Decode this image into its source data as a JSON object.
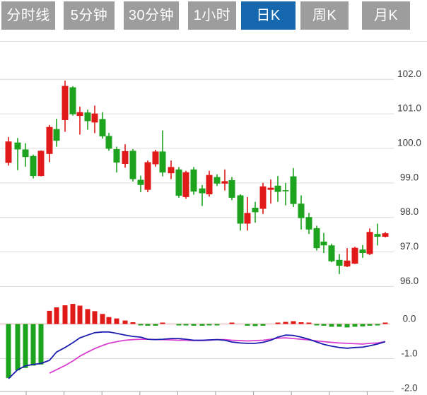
{
  "tabs": [
    {
      "id": "time-line",
      "label": "分时线",
      "active": false
    },
    {
      "id": "5min",
      "label": "5分钟",
      "active": false
    },
    {
      "id": "30min",
      "label": "30分钟",
      "active": false
    },
    {
      "id": "1hour",
      "label": "1小时",
      "active": false
    },
    {
      "id": "daily",
      "label": "日K",
      "active": true
    },
    {
      "id": "weekly",
      "label": "周K",
      "active": false
    },
    {
      "id": "monthly",
      "label": "月K",
      "active": false
    }
  ],
  "colors": {
    "tab_active_bg": "#1668ae",
    "tab_inactive_bg": "#9d9d9d",
    "tab_text": "#ffffff",
    "up": "#e01919",
    "down": "#1ea31e",
    "dif_line": "#1d1db0",
    "dea_line": "#d83fd0",
    "grid": "#dcdcdc",
    "macd_zero_line": "#eda9a9",
    "axis_text": "#3d3d3d",
    "axis_line": "#c0c0c0"
  },
  "chart_data": {
    "type": "candlestick",
    "panels": [
      "price",
      "macd"
    ],
    "price_axis": {
      "tick_labels": [
        "102.0",
        "101.0",
        "100.0",
        "99.0",
        "98.0",
        "97.0",
        "96.0"
      ],
      "tick_values": [
        102,
        101,
        100,
        99,
        98,
        97,
        96
      ],
      "range": [
        95.8,
        102.6
      ],
      "grid": true,
      "position": "right"
    },
    "macd_axis": {
      "tick_labels": [
        "0.0",
        "-1.0",
        "-2.0"
      ],
      "tick_values": [
        0,
        -1,
        -2
      ],
      "range": [
        -2.1,
        0.7
      ],
      "position": "right"
    },
    "up_convention": "red body when close >= open, green when close < open",
    "candles_format": [
      "center_x",
      "open",
      "high",
      "low",
      "close"
    ],
    "candles": [
      [
        12,
        99.58,
        100.33,
        99.5,
        100.2
      ],
      [
        25,
        100.17,
        100.3,
        99.37,
        99.97
      ],
      [
        36,
        99.97,
        100.15,
        99.47,
        99.75
      ],
      [
        47,
        99.78,
        99.82,
        99.13,
        99.2
      ],
      [
        58,
        99.2,
        99.94,
        99.19,
        99.93
      ],
      [
        70,
        99.84,
        100.68,
        99.6,
        100.62
      ],
      [
        80,
        100.56,
        100.86,
        100.05,
        100.22
      ],
      [
        92,
        100.82,
        101.96,
        100.48,
        101.81
      ],
      [
        103,
        101.77,
        101.8,
        100.95,
        100.99
      ],
      [
        113,
        100.94,
        101.21,
        100.4,
        101.05
      ],
      [
        124,
        101.04,
        101.12,
        100.54,
        100.79
      ],
      [
        134,
        100.75,
        101.24,
        100.44,
        101.01
      ],
      [
        145,
        100.85,
        101.05,
        100.28,
        100.35
      ],
      [
        154,
        100.36,
        100.45,
        99.93,
        99.99
      ],
      [
        165,
        99.98,
        100.05,
        99.3,
        99.59
      ],
      [
        177,
        99.55,
        100.12,
        99.44,
        99.92
      ],
      [
        188,
        99.93,
        99.98,
        99.04,
        99.11
      ],
      [
        199,
        99.09,
        99.21,
        98.73,
        98.94
      ],
      [
        209,
        98.8,
        99.65,
        98.73,
        99.6
      ],
      [
        220,
        99.54,
        99.96,
        99.47,
        99.91
      ],
      [
        230,
        99.91,
        100.52,
        99.19,
        99.3
      ],
      [
        242,
        99.28,
        99.65,
        99.11,
        99.46
      ],
      [
        253,
        99.39,
        99.46,
        98.57,
        98.63
      ],
      [
        263,
        98.59,
        99.35,
        98.54,
        99.31
      ],
      [
        274,
        99.39,
        99.46,
        98.66,
        98.75
      ],
      [
        286,
        98.84,
        98.94,
        98.33,
        98.7
      ],
      [
        296,
        98.67,
        99.35,
        98.6,
        99.23
      ],
      [
        307,
        99.17,
        99.25,
        98.91,
        98.98
      ],
      [
        318,
        98.98,
        99.39,
        98.78,
        99.05
      ],
      [
        328,
        99.08,
        99.17,
        98.5,
        98.57
      ],
      [
        340,
        98.64,
        98.67,
        97.62,
        97.82
      ],
      [
        350,
        97.82,
        98.59,
        97.62,
        98.13
      ],
      [
        361,
        98.28,
        98.45,
        97.85,
        98.15
      ],
      [
        372,
        98.25,
        99.0,
        98.1,
        98.9
      ],
      [
        383,
        98.8,
        99.1,
        98.4,
        98.86
      ],
      [
        393,
        98.92,
        99.2,
        98.45,
        98.74
      ],
      [
        404,
        98.79,
        99.0,
        98.35,
        98.77
      ],
      [
        415,
        99.19,
        99.43,
        98.3,
        98.39
      ],
      [
        426,
        98.4,
        98.64,
        97.65,
        97.98
      ],
      [
        437,
        98.01,
        98.13,
        97.52,
        97.65
      ],
      [
        448,
        97.69,
        97.76,
        97.04,
        97.11
      ],
      [
        458,
        97.3,
        97.55,
        96.97,
        97.19
      ],
      [
        469,
        97.19,
        97.24,
        96.7,
        96.73
      ],
      [
        480,
        96.77,
        96.94,
        96.36,
        96.6
      ],
      [
        491,
        96.58,
        97.11,
        96.56,
        96.75
      ],
      [
        502,
        96.66,
        97.15,
        96.65,
        97.12
      ],
      [
        513,
        97.07,
        97.2,
        96.83,
        96.97
      ],
      [
        523,
        96.94,
        97.68,
        96.91,
        97.58
      ],
      [
        534,
        97.52,
        97.82,
        97.19,
        97.44
      ],
      [
        545,
        97.44,
        97.58,
        97.42,
        97.54
      ]
    ],
    "macd": {
      "histogram": [
        -1.56,
        -1.34,
        -1.27,
        -1.2,
        -1.17,
        0.38,
        0.48,
        0.54,
        0.58,
        0.53,
        0.43,
        0.37,
        0.29,
        0.2,
        0.16,
        0.1,
        0.05,
        -0.04,
        -0.05,
        -0.05,
        0.02,
        0,
        -0.02,
        -0.04,
        -0.05,
        -0.05,
        -0.04,
        -0.04,
        0,
        0.02,
        0,
        -0.05,
        -0.06,
        -0.05,
        0,
        0.04,
        0.06,
        0.08,
        0.05,
        0.02,
        -0.03,
        -0.05,
        -0.08,
        -0.08,
        -0.1,
        -0.08,
        -0.07,
        -0.05,
        -0.04,
        0.03
      ],
      "dif": [
        -1.58,
        -1.32,
        -1.21,
        -1.17,
        -1.14,
        -1.05,
        -0.81,
        -0.68,
        -0.54,
        -0.4,
        -0.32,
        -0.25,
        -0.23,
        -0.23,
        -0.27,
        -0.32,
        -0.36,
        -0.38,
        -0.44,
        -0.45,
        -0.44,
        -0.42,
        -0.42,
        -0.44,
        -0.47,
        -0.47,
        -0.46,
        -0.45,
        -0.47,
        -0.52,
        -0.55,
        -0.56,
        -0.56,
        -0.53,
        -0.47,
        -0.38,
        -0.32,
        -0.33,
        -0.38,
        -0.44,
        -0.52,
        -0.59,
        -0.64,
        -0.68,
        -0.7,
        -0.68,
        -0.67,
        -0.63,
        -0.58,
        -0.51
      ],
      "dea": [
        null,
        null,
        null,
        null,
        null,
        -1.42,
        -1.32,
        -1.2,
        -1.07,
        -0.93,
        -0.81,
        -0.71,
        -0.62,
        -0.56,
        -0.51,
        -0.47,
        -0.45,
        -0.44,
        -0.44,
        -0.45,
        -0.45,
        -0.46,
        -0.47,
        -0.47,
        -0.48,
        -0.48,
        -0.47,
        -0.45,
        -0.45,
        -0.47,
        -0.48,
        -0.49,
        -0.48,
        -0.47,
        -0.44,
        -0.41,
        -0.4,
        -0.42,
        -0.44,
        -0.46,
        -0.49,
        -0.51,
        -0.53,
        -0.55,
        -0.56,
        -0.57,
        -0.58,
        -0.56,
        -0.55,
        -0.51
      ]
    }
  }
}
